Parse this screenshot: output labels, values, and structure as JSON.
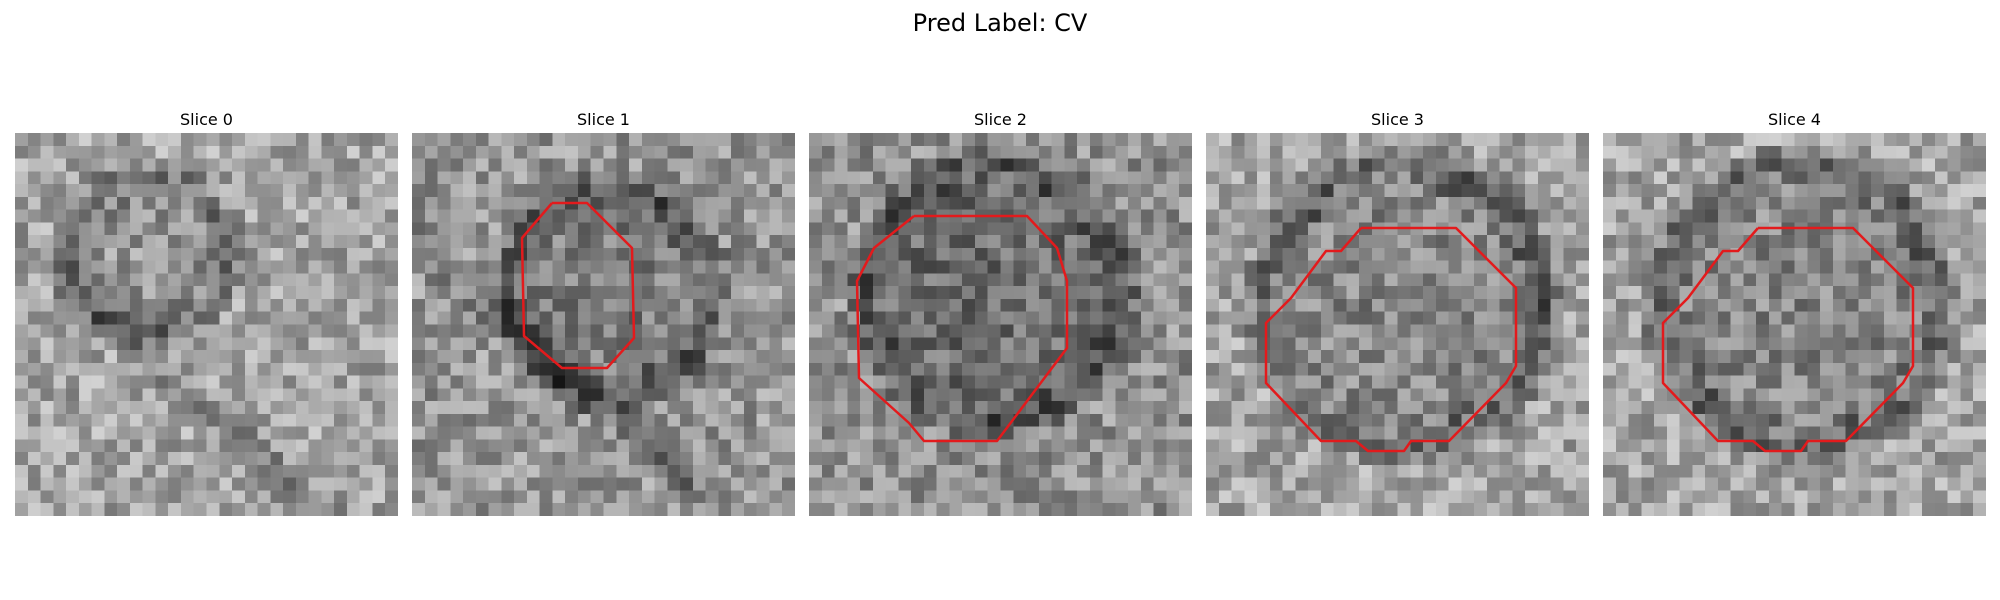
{
  "figure": {
    "title": "Pred Label: CV"
  },
  "panels": [
    {
      "title": "Slice 0",
      "has_contour": false
    },
    {
      "title": "Slice 1",
      "has_contour": true
    },
    {
      "title": "Slice 2",
      "has_contour": true
    },
    {
      "title": "Slice 3",
      "has_contour": true
    },
    {
      "title": "Slice 4",
      "has_contour": true
    }
  ],
  "colors": {
    "contour": "#e31a1c",
    "background": "#ffffff"
  },
  "colormap": "gray"
}
